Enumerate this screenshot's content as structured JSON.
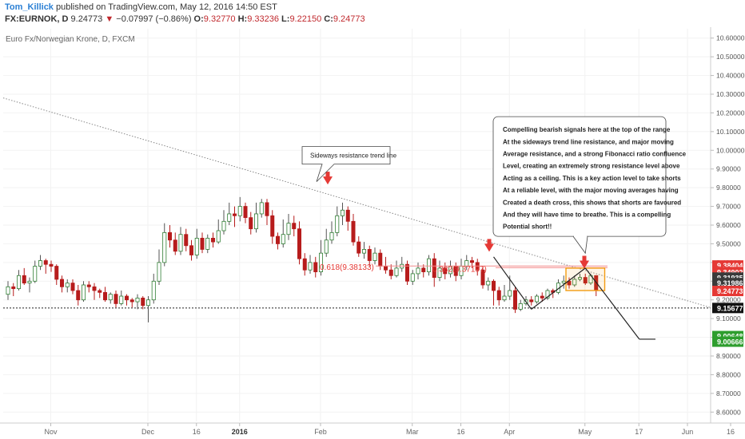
{
  "header": {
    "author": "Tom_Killick",
    "published_text": "published on TradingView.com, May 12, 2016 14:50 EST",
    "symbol": "FX:EURNOK, D",
    "last": "9.24773",
    "change_arrow": "▼",
    "change": "−0.07997 (−0.86%)",
    "open_label": "O:",
    "open": "9.32770",
    "high_label": "H:",
    "high": "9.33236",
    "low_label": "L:",
    "low": "9.22150",
    "close_label": "C:",
    "close": "9.24773"
  },
  "colors": {
    "up": "#2e7d32",
    "down": "#b71c1c",
    "accent_red": "#e53935",
    "bar_orange": "#f39c12",
    "green_tag": "#2e9e2e",
    "black_tag": "#111111"
  },
  "chart_data": {
    "type": "candlestick",
    "title": "Euro Fx/Norwegian Krone, D, FXCM",
    "ylim": [
      8.55,
      10.65
    ],
    "y_ticks": [
      "10.60000",
      "10.50000",
      "10.40000",
      "10.30000",
      "10.20000",
      "10.10000",
      "10.00000",
      "9.90000",
      "9.80000",
      "9.70000",
      "9.60000",
      "9.50000",
      "9.40000",
      "9.30000",
      "9.20000",
      "9.10000",
      "9.00000",
      "8.90000",
      "8.80000",
      "8.70000",
      "8.60000"
    ],
    "x_ticks": [
      "Nov",
      "Dec",
      "16",
      "2016",
      "Feb",
      "Mar",
      "16",
      "Apr",
      "May",
      "17",
      "Jun",
      "16"
    ],
    "price_tags": [
      {
        "label": "9.38404",
        "value": 9.38404,
        "style": "red"
      },
      {
        "label": "9.34902",
        "value": 9.34902,
        "style": "red"
      },
      {
        "label": "9.31935",
        "value": 9.31935,
        "style": "gray"
      },
      {
        "label": "9.31986",
        "value": 9.28986,
        "style": "gray"
      },
      {
        "label": "9.24773",
        "value": 9.24773,
        "style": "red"
      },
      {
        "label": "9.15677",
        "value": 9.15677,
        "style": "black"
      },
      {
        "label": "9.00648",
        "value": 9.00648,
        "style": "green"
      },
      {
        "label": "9.00666",
        "value": 8.97666,
        "style": "green"
      }
    ],
    "fib_labels": [
      {
        "text": "0.618(9.38133)",
        "value": 9.38133
      },
      {
        "text": "0.382(9.37197)",
        "value": 9.37197
      }
    ],
    "support_level": 9.15677,
    "trend_line": {
      "start": 10.28,
      "end": 9.16
    },
    "candles": [
      [
        9.23,
        9.27,
        9.2,
        9.3
      ],
      [
        9.27,
        9.26,
        9.22,
        9.29
      ],
      [
        9.26,
        9.33,
        9.25,
        9.36
      ],
      [
        9.33,
        9.29,
        9.28,
        9.37
      ],
      [
        9.29,
        9.3,
        9.24,
        9.32
      ],
      [
        9.3,
        9.38,
        9.29,
        9.41
      ],
      [
        9.38,
        9.41,
        9.36,
        9.44
      ],
      [
        9.41,
        9.39,
        9.34,
        9.42
      ],
      [
        9.39,
        9.38,
        9.35,
        9.41
      ],
      [
        9.38,
        9.31,
        9.28,
        9.39
      ],
      [
        9.31,
        9.27,
        9.24,
        9.33
      ],
      [
        9.27,
        9.29,
        9.24,
        9.31
      ],
      [
        9.29,
        9.25,
        9.23,
        9.31
      ],
      [
        9.25,
        9.2,
        9.17,
        9.28
      ],
      [
        9.2,
        9.28,
        9.19,
        9.3
      ],
      [
        9.28,
        9.27,
        9.24,
        9.3
      ],
      [
        9.27,
        9.25,
        9.2,
        9.29
      ],
      [
        9.25,
        9.24,
        9.21,
        9.26
      ],
      [
        9.24,
        9.2,
        9.19,
        9.27
      ],
      [
        9.2,
        9.23,
        9.18,
        9.24
      ],
      [
        9.23,
        9.18,
        9.16,
        9.25
      ],
      [
        9.18,
        9.22,
        9.17,
        9.25
      ],
      [
        9.22,
        9.2,
        9.17,
        9.23
      ],
      [
        9.2,
        9.19,
        9.16,
        9.21
      ],
      [
        9.19,
        9.21,
        9.15,
        9.23
      ],
      [
        9.21,
        9.17,
        9.15,
        9.22
      ],
      [
        9.17,
        9.2,
        9.08,
        9.22
      ],
      [
        9.2,
        9.3,
        9.18,
        9.34
      ],
      [
        9.3,
        9.4,
        9.28,
        9.47
      ],
      [
        9.4,
        9.56,
        9.38,
        9.61
      ],
      [
        9.56,
        9.52,
        9.48,
        9.6
      ],
      [
        9.52,
        9.46,
        9.44,
        9.56
      ],
      [
        9.46,
        9.55,
        9.44,
        9.59
      ],
      [
        9.55,
        9.49,
        9.46,
        9.58
      ],
      [
        9.49,
        9.44,
        9.41,
        9.52
      ],
      [
        9.44,
        9.53,
        9.42,
        9.58
      ],
      [
        9.53,
        9.47,
        9.45,
        9.56
      ],
      [
        9.47,
        9.53,
        9.45,
        9.55
      ],
      [
        9.53,
        9.51,
        9.48,
        9.56
      ],
      [
        9.51,
        9.57,
        9.5,
        9.63
      ],
      [
        9.57,
        9.62,
        9.55,
        9.68
      ],
      [
        9.62,
        9.66,
        9.6,
        9.72
      ],
      [
        9.66,
        9.65,
        9.59,
        9.7
      ],
      [
        9.65,
        9.7,
        9.62,
        9.75
      ],
      [
        9.7,
        9.64,
        9.61,
        9.72
      ],
      [
        9.64,
        9.58,
        9.55,
        9.67
      ],
      [
        9.58,
        9.66,
        9.56,
        9.72
      ],
      [
        9.66,
        9.72,
        9.64,
        9.74
      ],
      [
        9.72,
        9.65,
        9.6,
        9.74
      ],
      [
        9.65,
        9.54,
        9.5,
        9.68
      ],
      [
        9.54,
        9.5,
        9.47,
        9.56
      ],
      [
        9.5,
        9.55,
        9.48,
        9.63
      ],
      [
        9.55,
        9.61,
        9.52,
        9.66
      ],
      [
        9.61,
        9.58,
        9.54,
        9.65
      ],
      [
        9.58,
        9.42,
        9.39,
        9.62
      ],
      [
        9.42,
        9.36,
        9.33,
        9.45
      ],
      [
        9.36,
        9.4,
        9.34,
        9.44
      ],
      [
        9.4,
        9.35,
        9.32,
        9.43
      ],
      [
        9.35,
        9.45,
        9.33,
        9.52
      ],
      [
        9.45,
        9.52,
        9.43,
        9.58
      ],
      [
        9.52,
        9.56,
        9.5,
        9.62
      ],
      [
        9.56,
        9.65,
        9.54,
        9.7
      ],
      [
        9.65,
        9.68,
        9.6,
        9.72
      ],
      [
        9.68,
        9.62,
        9.57,
        9.7
      ],
      [
        9.62,
        9.51,
        9.49,
        9.66
      ],
      [
        9.51,
        9.45,
        9.43,
        9.54
      ],
      [
        9.45,
        9.47,
        9.42,
        9.51
      ],
      [
        9.47,
        9.41,
        9.38,
        9.49
      ],
      [
        9.41,
        9.45,
        9.39,
        9.48
      ],
      [
        9.45,
        9.38,
        9.36,
        9.47
      ],
      [
        9.38,
        9.36,
        9.34,
        9.43
      ],
      [
        9.36,
        9.33,
        9.31,
        9.39
      ],
      [
        9.33,
        9.37,
        9.32,
        9.41
      ],
      [
        9.37,
        9.39,
        9.35,
        9.43
      ],
      [
        9.39,
        9.3,
        9.28,
        9.41
      ],
      [
        9.3,
        9.34,
        9.28,
        9.36
      ],
      [
        9.34,
        9.37,
        9.31,
        9.4
      ],
      [
        9.37,
        9.35,
        9.32,
        9.39
      ],
      [
        9.35,
        9.42,
        9.33,
        9.44
      ],
      [
        9.42,
        9.32,
        9.27,
        9.45
      ],
      [
        9.32,
        9.37,
        9.3,
        9.41
      ],
      [
        9.37,
        9.34,
        9.31,
        9.4
      ],
      [
        9.34,
        9.38,
        9.32,
        9.41
      ],
      [
        9.38,
        9.33,
        9.3,
        9.4
      ],
      [
        9.33,
        9.38,
        9.31,
        9.42
      ],
      [
        9.38,
        9.41,
        9.36,
        9.44
      ],
      [
        9.41,
        9.4,
        9.37,
        9.43
      ],
      [
        9.4,
        9.36,
        9.33,
        9.42
      ],
      [
        9.36,
        9.28,
        9.26,
        9.38
      ],
      [
        9.28,
        9.3,
        9.25,
        9.32
      ],
      [
        9.3,
        9.25,
        9.17,
        9.31
      ],
      [
        9.25,
        9.2,
        9.17,
        9.27
      ],
      [
        9.2,
        9.22,
        9.19,
        9.28
      ],
      [
        9.22,
        9.25,
        9.2,
        9.33
      ],
      [
        9.25,
        9.15,
        9.13,
        9.27
      ],
      [
        9.15,
        9.18,
        9.14,
        9.2
      ],
      [
        9.18,
        9.2,
        9.17,
        9.22
      ],
      [
        9.2,
        9.19,
        9.17,
        9.22
      ],
      [
        9.19,
        9.22,
        9.18,
        9.23
      ],
      [
        9.22,
        9.21,
        9.19,
        9.24
      ],
      [
        9.21,
        9.25,
        9.2,
        9.26
      ],
      [
        9.25,
        9.24,
        9.21,
        9.26
      ],
      [
        9.24,
        9.29,
        9.23,
        9.31
      ],
      [
        9.29,
        9.3,
        9.26,
        9.33
      ],
      [
        9.3,
        9.28,
        9.26,
        9.32
      ],
      [
        9.28,
        9.31,
        9.27,
        9.33
      ],
      [
        9.31,
        9.32,
        9.3,
        9.34
      ],
      [
        9.32,
        9.29,
        9.28,
        9.34
      ],
      [
        9.29,
        9.33,
        9.28,
        9.34
      ],
      [
        9.33,
        9.25,
        9.22,
        9.33
      ]
    ],
    "annotations": [
      {
        "type": "callout",
        "text": "Sideways resistance trend line"
      },
      {
        "type": "callout",
        "lines": [
          "Compelling bearish signals here at the top of the range",
          "At the sideways trend line resistance, and major moving",
          "Average resistance, and a strong Fibonacci ratio confluence",
          "Level, creating an extremely strong resistance level above",
          "Acting as a ceiling. This is a key action level to take shorts",
          "At a reliable level, with the major moving averages having",
          "Created a death cross, this shows that shorts are favoured",
          "And they will have time to breathe. This is a compelling",
          "Potential short!!"
        ]
      }
    ]
  }
}
